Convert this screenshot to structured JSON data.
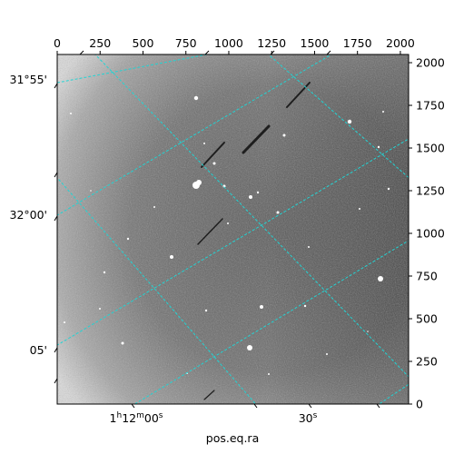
{
  "figure": {
    "xlabel": "pos.eq.ra",
    "grid_color": "#22d3d3",
    "frame_color": "#000000"
  },
  "pixel_axes": {
    "x_range": [
      0,
      2048
    ],
    "y_range": [
      0,
      2048
    ],
    "x_ticks": [
      "0",
      "250",
      "500",
      "750",
      "1000",
      "1250",
      "1500",
      "1750",
      "2000"
    ],
    "y_ticks": [
      "0",
      "250",
      "500",
      "750",
      "1000",
      "1250",
      "1500",
      "1750",
      "2000"
    ]
  },
  "world_axes": {
    "dec_labels": [
      {
        "id": "dec-31-55",
        "text": "31°55'"
      },
      {
        "id": "dec-32-00",
        "text": "32°00'"
      },
      {
        "id": "dec-05",
        "text": "05'"
      }
    ],
    "ra_labels": [
      {
        "id": "ra-1h12m00s",
        "hours": "1",
        "minutes": "12",
        "seconds": "00",
        "sec_unit": "s"
      },
      {
        "id": "ra-30s",
        "text": "30",
        "sec_unit": "s"
      }
    ]
  },
  "image": {
    "kind": "astronomical-field",
    "background": "gray-noise-vignette"
  }
}
